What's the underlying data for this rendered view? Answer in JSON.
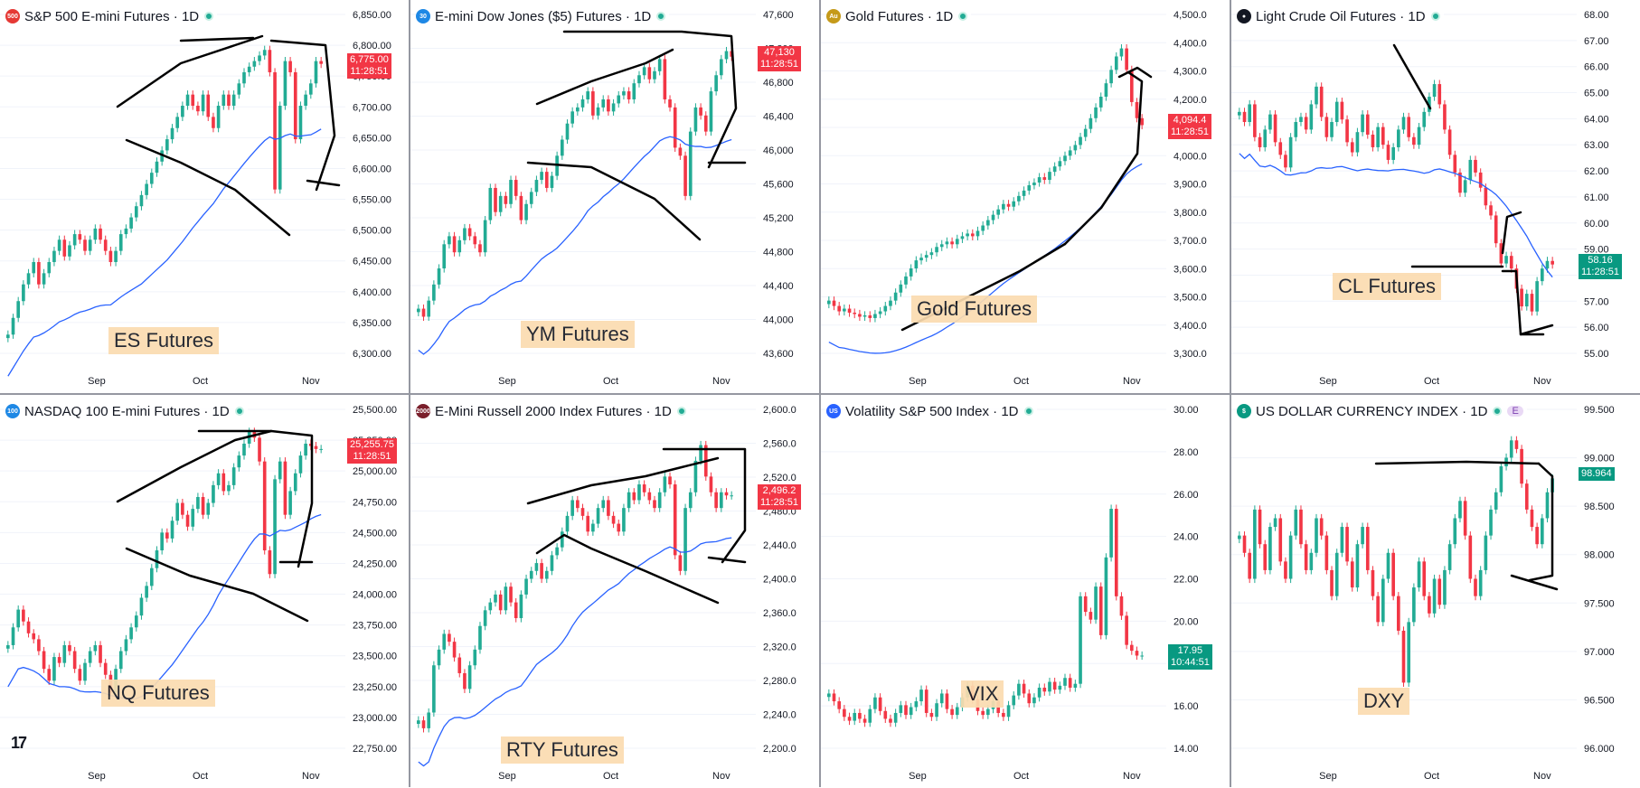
{
  "layout": {
    "cols": 4,
    "rows": 2
  },
  "colors": {
    "up": "#22ab94",
    "down": "#f23645",
    "sma": "#2962ff",
    "drawing": "#000000",
    "label_bg": "#fbdcb0",
    "grid": "#f0f3fa"
  },
  "branding": {
    "logo_text": "17"
  },
  "panels": [
    {
      "id": "es",
      "title": "S&P 500 E-mini Futures · 1D",
      "icon_text": "500",
      "icon_color": "#e53935",
      "overlay_label": "ES Futures",
      "y_ticks": [
        "6,850.00",
        "6,800.00",
        "6,750.00",
        "6,700.00",
        "6,650.00",
        "6,600.00",
        "6,550.00",
        "6,500.00",
        "6,450.00",
        "6,400.00",
        "6,350.00",
        "6,300.00"
      ],
      "x_ticks": [
        "Sep",
        "Oct",
        "Nov"
      ],
      "price_tag": {
        "price": "6,775.00",
        "time": "11:28:51",
        "color": "#f23645"
      },
      "chart_data": {
        "type": "candlestick",
        "title": "S&P 500 E-mini Futures · 1D",
        "ylim": [
          6250,
          6870
        ],
        "x_ticks": [
          "Sep",
          "Oct",
          "Nov"
        ],
        "closes": [
          6290,
          6320,
          6350,
          6380,
          6400,
          6420,
          6380,
          6400,
          6420,
          6440,
          6460,
          6430,
          6450,
          6470,
          6460,
          6440,
          6460,
          6480,
          6460,
          6440,
          6420,
          6440,
          6470,
          6480,
          6500,
          6520,
          6540,
          6560,
          6580,
          6600,
          6620,
          6640,
          6660,
          6680,
          6700,
          6720,
          6700,
          6690,
          6720,
          6680,
          6660,
          6700,
          6720,
          6700,
          6720,
          6740,
          6760,
          6770,
          6780,
          6790,
          6800,
          6760,
          6550,
          6700,
          6780,
          6760,
          6640,
          6700,
          6720,
          6740,
          6780,
          6775
        ]
      }
    },
    {
      "id": "ym",
      "title": "E-mini Dow Jones ($5) Futures · 1D",
      "icon_text": "30",
      "icon_color": "#1e88e5",
      "overlay_label": "YM Futures",
      "y_ticks": [
        "47,600",
        "47,200",
        "46,800",
        "46,400",
        "46,000",
        "45,600",
        "45,200",
        "44,800",
        "44,400",
        "44,000",
        "43,600"
      ],
      "x_ticks": [
        "Sep",
        "Oct",
        "Nov"
      ],
      "price_tag": {
        "price": "47,130",
        "time": "11:28:51",
        "color": "#f23645"
      },
      "chart_data": {
        "type": "candlestick",
        "title": "E-mini Dow Jones ($5) Futures · 1D",
        "ylim": [
          43400,
          47700
        ],
        "x_ticks": [
          "Sep",
          "Oct",
          "Nov"
        ],
        "closes": [
          44000,
          43900,
          44100,
          44300,
          44500,
          44800,
          44900,
          44700,
          44850,
          45000,
          44900,
          44800,
          44700,
          45100,
          45500,
          45200,
          45400,
          45300,
          45600,
          45400,
          45100,
          45300,
          45450,
          45600,
          45700,
          45500,
          45650,
          45900,
          46100,
          46300,
          46450,
          46500,
          46600,
          46700,
          46400,
          46500,
          46600,
          46450,
          46550,
          46650,
          46700,
          46600,
          46800,
          46900,
          47000,
          46850,
          46950,
          47100,
          46600,
          46500,
          46000,
          45900,
          45400,
          46200,
          46500,
          46400,
          46200,
          46700,
          46900,
          47100,
          47200,
          47130
        ]
      }
    },
    {
      "id": "gold",
      "title": "Gold Futures · 1D",
      "icon_text": "Au",
      "icon_color": "#c59a1a",
      "overlay_label": "Gold Futures",
      "y_ticks": [
        "4,500.0",
        "4,400.0",
        "4,300.0",
        "4,200.0",
        "4,100.0",
        "4,000.0",
        "3,900.0",
        "3,800.0",
        "3,700.0",
        "3,600.0",
        "3,500.0",
        "3,400.0",
        "3,300.0"
      ],
      "x_ticks": [
        "Sep",
        "Oct",
        "Nov"
      ],
      "price_tag": {
        "price": "4,094.4",
        "time": "11:28:51",
        "color": "#f23645"
      },
      "chart_data": {
        "type": "candlestick",
        "title": "Gold Futures · 1D",
        "ylim": [
          3230,
          4520
        ],
        "x_ticks": [
          "Sep",
          "Oct",
          "Nov"
        ],
        "closes": [
          3440,
          3420,
          3400,
          3410,
          3395,
          3390,
          3380,
          3385,
          3375,
          3390,
          3400,
          3420,
          3440,
          3470,
          3500,
          3530,
          3560,
          3590,
          3600,
          3610,
          3620,
          3640,
          3650,
          3660,
          3650,
          3670,
          3680,
          3690,
          3680,
          3700,
          3720,
          3740,
          3760,
          3780,
          3800,
          3790,
          3810,
          3830,
          3850,
          3870,
          3880,
          3900,
          3890,
          3920,
          3940,
          3960,
          3980,
          4000,
          4020,
          4050,
          4080,
          4120,
          4160,
          4200,
          4250,
          4300,
          4350,
          4380,
          4300,
          4180,
          4120,
          4094
        ]
      }
    },
    {
      "id": "cl",
      "title": "Light Crude Oil Futures · 1D",
      "icon_text": "●",
      "icon_color": "#131722",
      "overlay_label": "CL Futures",
      "y_ticks": [
        "68.00",
        "67.00",
        "66.00",
        "65.00",
        "64.00",
        "63.00",
        "62.00",
        "61.00",
        "60.00",
        "59.00",
        "58.00",
        "57.00",
        "56.00",
        "55.00"
      ],
      "x_ticks": [
        "Sep",
        "Oct",
        "Nov"
      ],
      "price_tag": {
        "price": "58.16",
        "time": "11:28:51",
        "color": "#089981"
      },
      "chart_data": {
        "type": "candlestick",
        "title": "Light Crude Oil Futures · 1D",
        "ylim": [
          54.5,
          68.2
        ],
        "x_ticks": [
          "Sep",
          "Oct",
          "Nov"
        ],
        "closes": [
          64.2,
          63.8,
          64.5,
          63.2,
          62.8,
          63.5,
          64.1,
          63.0,
          62.5,
          62.0,
          63.2,
          63.8,
          64.0,
          63.5,
          64.5,
          65.2,
          64.0,
          63.2,
          63.8,
          64.6,
          63.9,
          63.0,
          62.6,
          63.4,
          64.1,
          63.3,
          62.8,
          63.6,
          62.9,
          62.3,
          62.8,
          63.5,
          64.0,
          63.2,
          62.9,
          63.6,
          64.2,
          64.8,
          65.3,
          64.5,
          63.5,
          62.5,
          61.8,
          61.0,
          61.5,
          62.3,
          61.8,
          61.2,
          60.5,
          60.1,
          59.0,
          58.2,
          58.5,
          58.0,
          57.2,
          56.5,
          57.0,
          56.3,
          57.5,
          58.0,
          58.3,
          58.16
        ]
      }
    },
    {
      "id": "nq",
      "title": "NASDAQ 100 E-mini Futures · 1D",
      "icon_text": "100",
      "icon_color": "#1e88e5",
      "overlay_label": "NQ Futures",
      "y_ticks": [
        "25,500.00",
        "25,250.00",
        "25,000.00",
        "24,750.00",
        "24,500.00",
        "24,250.00",
        "24,000.00",
        "23,750.00",
        "23,500.00",
        "23,250.00",
        "23,000.00",
        "22,750.00"
      ],
      "x_ticks": [
        "Sep",
        "Oct",
        "Nov"
      ],
      "price_tag": {
        "price": "25,255.75",
        "time": "11:28:51",
        "color": "#f23645"
      },
      "chart_data": {
        "type": "candlestick",
        "title": "NASDAQ 100 E-mini Futures · 1D",
        "ylim": [
          22700,
          25620
        ],
        "x_ticks": [
          "Sep",
          "Oct",
          "Nov"
        ],
        "closes": [
          23600,
          23750,
          23900,
          23800,
          23700,
          23650,
          23550,
          23400,
          23300,
          23500,
          23450,
          23600,
          23550,
          23400,
          23300,
          23450,
          23550,
          23600,
          23450,
          23350,
          23200,
          23400,
          23550,
          23650,
          23750,
          23850,
          24000,
          24100,
          24250,
          24400,
          24550,
          24500,
          24650,
          24800,
          24700,
          24600,
          24750,
          24850,
          24700,
          24800,
          24950,
          25050,
          24900,
          24950,
          25100,
          25200,
          25300,
          25400,
          25350,
          25150,
          24400,
          24200,
          25000,
          25150,
          24700,
          24900,
          25050,
          25200,
          25300,
          25280,
          25255,
          25255
        ]
      }
    },
    {
      "id": "rty",
      "title": "E-Mini Russell 2000 Index Futures · 1D",
      "icon_text": "2000",
      "icon_color": "#7a1f2b",
      "overlay_label": "RTY Futures",
      "y_ticks": [
        "2,600.0",
        "2,560.0",
        "2,520.0",
        "2,480.0",
        "2,440.0",
        "2,400.0",
        "2,360.0",
        "2,320.0",
        "2,280.0",
        "2,240.0",
        "2,200.0"
      ],
      "x_ticks": [
        "Sep",
        "Oct",
        "Nov"
      ],
      "price_tag": {
        "price": "2,496.2",
        "time": "11:28:51",
        "color": "#f23645"
      },
      "chart_data": {
        "type": "candlestick",
        "title": "E-Mini Russell 2000 Index Futures · 1D",
        "ylim": [
          2170,
          2610
        ],
        "x_ticks": [
          "Sep",
          "Oct",
          "Nov"
        ],
        "closes": [
          2210,
          2200,
          2220,
          2280,
          2300,
          2320,
          2310,
          2290,
          2270,
          2250,
          2280,
          2300,
          2330,
          2350,
          2360,
          2370,
          2350,
          2380,
          2360,
          2340,
          2370,
          2390,
          2400,
          2410,
          2390,
          2400,
          2420,
          2430,
          2450,
          2470,
          2490,
          2480,
          2470,
          2450,
          2460,
          2480,
          2490,
          2470,
          2460,
          2450,
          2480,
          2500,
          2490,
          2510,
          2500,
          2490,
          2480,
          2500,
          2520,
          2510,
          2420,
          2400,
          2480,
          2500,
          2540,
          2560,
          2520,
          2500,
          2480,
          2500,
          2496,
          2496
        ]
      }
    },
    {
      "id": "vix",
      "title": "Volatility S&P 500 Index · 1D",
      "icon_text": "US",
      "icon_color": "#2962ff",
      "overlay_label": "VIX",
      "y_ticks": [
        "30.00",
        "28.00",
        "26.00",
        "24.00",
        "22.00",
        "20.00",
        "18.00",
        "16.00",
        "14.00"
      ],
      "x_ticks": [
        "Sep",
        "Oct",
        "Nov"
      ],
      "price_tag": {
        "price": "17.95",
        "time": "10:44:51",
        "color": "#089981"
      },
      "chart_data": {
        "type": "candlestick",
        "title": "Volatility S&P 500 Index · 1D",
        "ylim": [
          13,
          30.8
        ],
        "x_ticks": [
          "Sep",
          "Oct",
          "Nov"
        ],
        "closes": [
          16.0,
          15.6,
          15.2,
          14.8,
          14.6,
          15.0,
          14.7,
          14.5,
          15.2,
          15.8,
          15.1,
          14.7,
          14.5,
          15.0,
          15.4,
          14.9,
          15.3,
          15.6,
          16.2,
          15.0,
          14.8,
          15.5,
          16.0,
          15.2,
          14.9,
          15.3,
          15.8,
          16.4,
          15.7,
          15.1,
          14.9,
          15.2,
          15.6,
          15.0,
          14.8,
          15.4,
          15.9,
          16.5,
          16.0,
          15.5,
          15.8,
          16.3,
          16.1,
          16.6,
          16.2,
          16.4,
          16.8,
          16.3,
          16.5,
          21.0,
          20.2,
          19.8,
          21.5,
          19.0,
          23.0,
          25.5,
          21.0,
          20.0,
          18.5,
          18.2,
          17.95,
          17.95
        ]
      }
    },
    {
      "id": "dxy",
      "title": "US DOLLAR CURRENCY INDEX · 1D",
      "icon_text": "$",
      "icon_color": "#089981",
      "badge": "E",
      "overlay_label": "DXY",
      "y_ticks": [
        "99.500",
        "99.000",
        "98.500",
        "98.000",
        "97.500",
        "97.000",
        "96.500",
        "96.000"
      ],
      "x_ticks": [
        "Sep",
        "Oct",
        "Nov"
      ],
      "price_tag": {
        "price": "98.964",
        "time": "",
        "color": "#089981"
      },
      "chart_data": {
        "type": "candlestick",
        "title": "US DOLLAR CURRENCY INDEX · 1D",
        "ylim": [
          95.8,
          99.8
        ],
        "x_ticks": [
          "Sep",
          "Oct",
          "Nov"
        ],
        "closes": [
          98.3,
          98.1,
          97.8,
          98.6,
          98.2,
          97.9,
          98.4,
          98.5,
          98.0,
          97.8,
          98.3,
          98.6,
          98.2,
          97.9,
          98.1,
          98.5,
          98.3,
          97.9,
          97.6,
          98.1,
          98.4,
          98.0,
          97.7,
          98.2,
          98.4,
          97.9,
          97.6,
          97.3,
          97.8,
          98.1,
          97.6,
          97.2,
          96.6,
          97.3,
          97.7,
          98.0,
          97.6,
          97.4,
          97.8,
          97.5,
          97.9,
          98.2,
          98.5,
          98.7,
          98.3,
          97.8,
          97.6,
          97.9,
          98.3,
          98.6,
          98.8,
          99.1,
          99.2,
          99.4,
          99.3,
          98.9,
          98.6,
          98.4,
          98.2,
          98.5,
          98.8,
          98.96
        ]
      }
    }
  ]
}
